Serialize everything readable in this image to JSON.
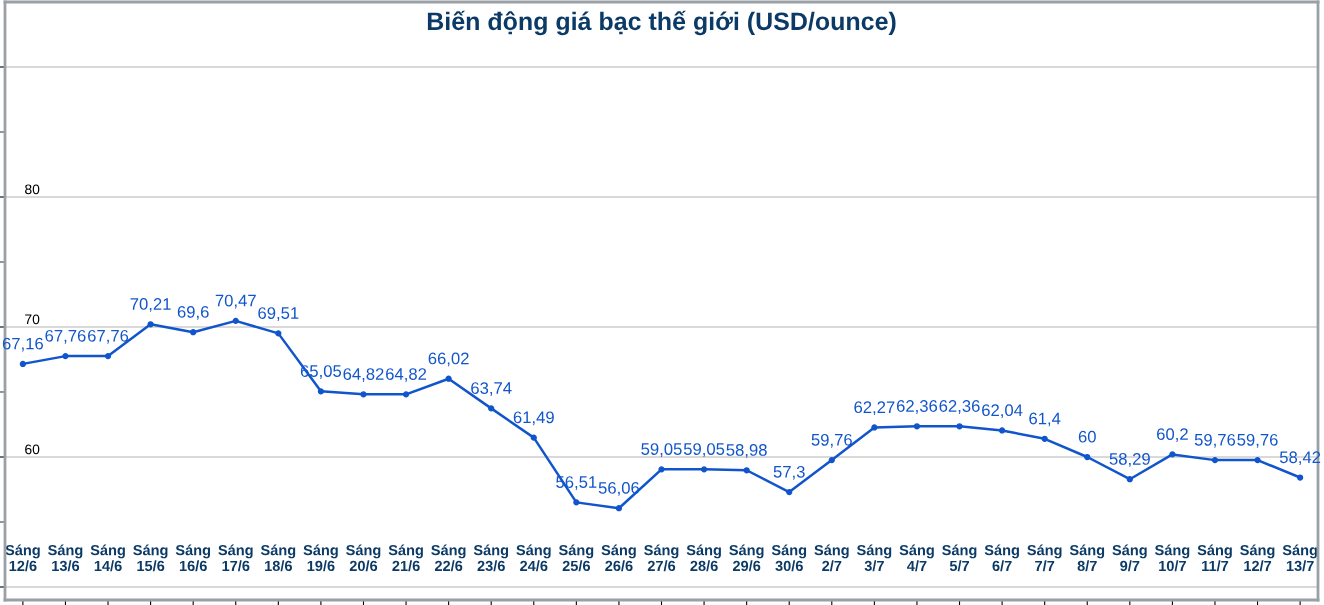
{
  "chart_data": {
    "type": "line",
    "title": "Biến động giá bạc thế giới (USD/ounce)",
    "categories": [
      "Sáng\n12/6",
      "Sáng\n13/6",
      "Sáng\n14/6",
      "Sáng\n15/6",
      "Sáng\n16/6",
      "Sáng\n17/6",
      "Sáng\n18/6",
      "Sáng\n19/6",
      "Sáng\n20/6",
      "Sáng\n21/6",
      "Sáng\n22/6",
      "Sáng\n23/6",
      "Sáng\n24/6",
      "Sáng\n25/6",
      "Sáng\n26/6",
      "Sáng\n27/6",
      "Sáng\n28/6",
      "Sáng\n29/6",
      "Sáng\n30/6",
      "Sáng\n2/7",
      "Sáng\n3/7",
      "Sáng\n4/7",
      "Sáng\n5/7",
      "Sáng\n6/7",
      "Sáng\n7/7",
      "Sáng\n8/7",
      "Sáng\n9/7",
      "Sáng\n10/7",
      "Sáng\n11/7",
      "Sáng\n12/7",
      "Sáng\n13/7"
    ],
    "series": [
      {
        "color": "#1155cc",
        "values": [
          67.16,
          67.76,
          67.76,
          70.21,
          69.6,
          70.47,
          69.51,
          65.05,
          64.82,
          64.82,
          66.02,
          63.74,
          61.49,
          56.51,
          56.06,
          59.05,
          59.05,
          58.98,
          57.3,
          59.76,
          62.27,
          62.36,
          62.36,
          62.04,
          61.4,
          60,
          58.29,
          60.2,
          59.76,
          59.76,
          58.42
        ],
        "value_labels": [
          "67,16",
          "67,76",
          "67,76",
          "70,21",
          "69,6",
          "70,47",
          "69,51",
          "65,05",
          "64,82",
          "64,82",
          "66,02",
          "63,74",
          "61,49",
          "56,51",
          "56,06",
          "59,05",
          "59,05",
          "58,98",
          "57,3",
          "59,76",
          "62,27",
          "62,36",
          "62,36",
          "62,04",
          "61,4",
          "60",
          "58,29",
          "60,2",
          "59,76",
          "59,76",
          "58,42"
        ]
      }
    ],
    "ylim": [
      49,
      95
    ],
    "yticks": [
      {
        "value": 50,
        "label": null
      },
      60,
      70,
      80,
      {
        "value": 90,
        "label": null
      }
    ],
    "grid": "y",
    "marker": "circle",
    "line_style": "solid"
  }
}
